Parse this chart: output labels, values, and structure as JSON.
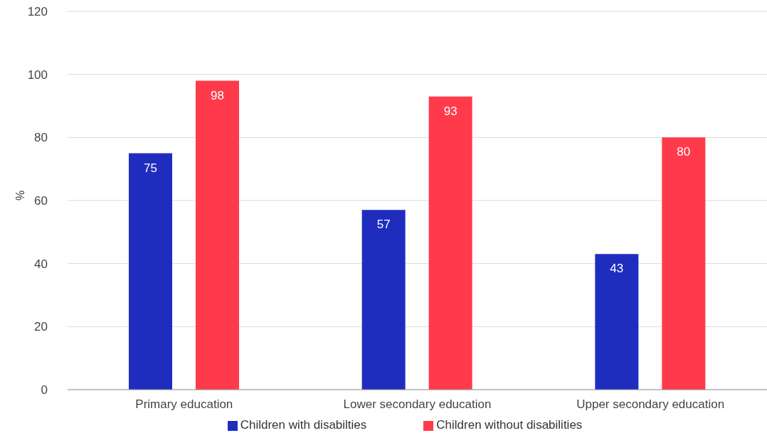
{
  "chart_data": {
    "type": "bar",
    "ylabel": "%",
    "categories": [
      "Primary education",
      "Lower secondary education",
      "Upper secondary education"
    ],
    "series": [
      {
        "name": "Children with disabilties",
        "color": "#1f2dbf",
        "values": [
          75,
          57,
          43
        ]
      },
      {
        "name": "Children without disabilities",
        "color": "#ff3a4a",
        "values": [
          98,
          93,
          80
        ]
      }
    ],
    "ylim": [
      0,
      120
    ],
    "yticks": [
      0,
      20,
      40,
      60,
      80,
      100,
      120
    ],
    "grid": "y",
    "legend": "bottom",
    "data_labels": true
  }
}
